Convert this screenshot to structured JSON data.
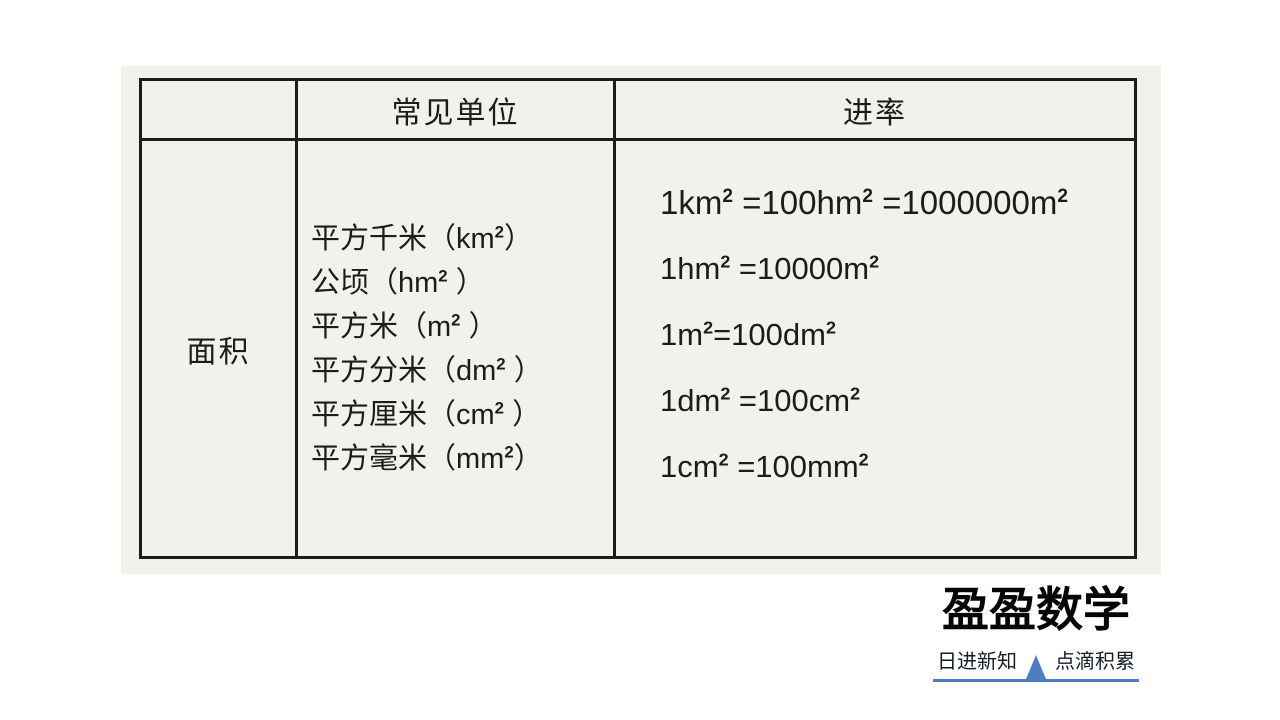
{
  "table": {
    "headers": {
      "corner": "",
      "units": "常见单位",
      "rates": "进率"
    },
    "row_label": "面积",
    "units": [
      "平方千米（km²）",
      "公顷（hm² ）",
      "平方米（m² ）",
      "平方分米（dm² ）",
      "平方厘米（cm² ）",
      "平方毫米（mm²）"
    ],
    "conversions": [
      "1km² =100hm² =1000000m²",
      "1hm² =10000m²",
      "1m²=100dm²",
      "1dm² =100cm²",
      "1cm² =100mm²"
    ]
  },
  "branding": {
    "logo_text": "盈盈数学",
    "tagline_left": "日进新知",
    "tagline_right": "点滴积累",
    "accent_color": "#4e7dc6"
  }
}
